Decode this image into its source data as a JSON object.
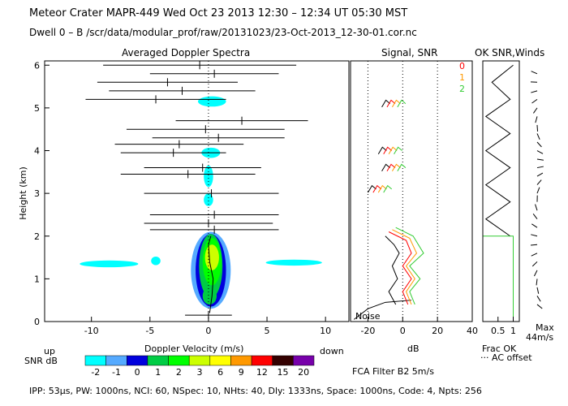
{
  "header": {
    "line1": "Meteor Crater   MAPR-449   Wed Oct 23 2013 12:30 – 12:34 UT 05:30 MST",
    "line2": "Dwell   0 –   B    /scr/data/modular_prof/raw/20131023/23-Oct-2013_12-30-01.cor.nc"
  },
  "panels": {
    "doppler_title": "Averaged Doppler Spectra",
    "signal_title": "Signal, SNR",
    "winds_title": "OK SNR,Winds"
  },
  "legend": {
    "ok_labels": [
      "0",
      "1",
      "2"
    ],
    "ok_colors": [
      "#ff0000",
      "#ff9900",
      "#33cc33"
    ],
    "up": "up",
    "down": "down",
    "snr_label": "SNR dB",
    "colorbar_ticks": [
      "-2",
      "-1",
      "0",
      "1",
      "2",
      "3",
      "6",
      "9",
      "12",
      "15",
      "20"
    ],
    "colorbar_colors": [
      "#00ffff",
      "#55aaff",
      "#0000dd",
      "#00cc44",
      "#00ff00",
      "#ccff00",
      "#ffff00",
      "#ff9900",
      "#ff0000",
      "#330000",
      "#7700aa"
    ],
    "noise_label": "Noise",
    "frac_ok": "Frac OK",
    "ac_offset": "··· AC offset",
    "max_label": "Max",
    "max_value": "44m/s",
    "fca_filter": "FCA Filter B2   5m/s"
  },
  "footer": {
    "params": "IPP: 53μs,  PW: 1000ns,  NCI: 60,  NSpec: 10,  NHts: 40,  Dly: 1333ns,  Space: 1000ns,  Code: 4,  Npts: 256"
  },
  "chart_data": [
    {
      "type": "heatmap",
      "title": "Averaged Doppler Spectra",
      "xlabel": "Doppler Velocity (m/s)",
      "ylabel": "Height (km)",
      "xlim": [
        -14,
        12
      ],
      "ylim": [
        0,
        6.1
      ],
      "xticks": [
        -10,
        -5,
        0,
        5,
        10
      ],
      "yticks": [
        0,
        1,
        2,
        3,
        4,
        5,
        6
      ],
      "spectral_segments": [
        {
          "height": 6.0,
          "vmin": -9.0,
          "vmax": 7.5
        },
        {
          "height": 5.8,
          "vmin": -5.0,
          "vmax": 6.0
        },
        {
          "height": 5.6,
          "vmin": -9.5,
          "vmax": 2.5
        },
        {
          "height": 5.4,
          "vmin": -8.5,
          "vmax": 4.0
        },
        {
          "height": 5.2,
          "vmin": -10.5,
          "vmax": 1.5
        },
        {
          "height": 4.7,
          "vmin": -2.8,
          "vmax": 8.5
        },
        {
          "height": 4.5,
          "vmin": -7.0,
          "vmax": 6.5
        },
        {
          "height": 4.3,
          "vmin": -4.8,
          "vmax": 6.5
        },
        {
          "height": 4.15,
          "vmin": -8.0,
          "vmax": 3.0
        },
        {
          "height": 3.95,
          "vmin": -7.5,
          "vmax": 1.5
        },
        {
          "height": 3.6,
          "vmin": -5.5,
          "vmax": 4.5
        },
        {
          "height": 3.45,
          "vmin": -7.5,
          "vmax": 4.0
        },
        {
          "height": 3.0,
          "vmin": -5.5,
          "vmax": 6.0
        },
        {
          "height": 2.5,
          "vmin": -5.0,
          "vmax": 6.0
        },
        {
          "height": 2.3,
          "vmin": -5.5,
          "vmax": 5.5
        },
        {
          "height": 2.15,
          "vmin": -5.0,
          "vmax": 6.0
        },
        {
          "height": 0.15,
          "vmin": -2.0,
          "vmax": 2.0
        }
      ],
      "mean_velocity_profile": [
        {
          "height": 0.2,
          "v": 0.1
        },
        {
          "height": 0.6,
          "v": 0.3
        },
        {
          "height": 1.0,
          "v": 0.4
        },
        {
          "height": 1.4,
          "v": 0.1
        },
        {
          "height": 1.8,
          "v": 0.0
        },
        {
          "height": 2.0,
          "v": 0.2
        }
      ]
    },
    {
      "type": "line",
      "title": "Signal, SNR",
      "xlabel": "dB",
      "xlim": [
        -30,
        40
      ],
      "ylim": [
        0,
        6.1
      ],
      "xticks": [
        -20,
        0,
        20,
        40
      ],
      "series": [
        {
          "name": "Noise",
          "points": [
            [
              -28,
              0.05
            ],
            [
              -20,
              0.3
            ],
            [
              -10,
              0.45
            ],
            [
              5,
              0.5
            ]
          ]
        },
        {
          "name": "Signal",
          "points": [
            [
              -10,
              2.0
            ],
            [
              -5,
              1.8
            ],
            [
              -2,
              1.6
            ],
            [
              -6,
              1.3
            ],
            [
              -3,
              1.0
            ],
            [
              -8,
              0.7
            ],
            [
              -4,
              0.4
            ]
          ]
        },
        {
          "name": "SNR 0",
          "points": [
            [
              -8,
              2.1
            ],
            [
              2,
              1.9
            ],
            [
              5,
              1.6
            ],
            [
              0,
              1.3
            ],
            [
              5,
              1.0
            ],
            [
              0,
              0.7
            ],
            [
              3,
              0.4
            ]
          ]
        },
        {
          "name": "SNR 1",
          "points": [
            [
              -6,
              2.15
            ],
            [
              4,
              1.95
            ],
            [
              8,
              1.6
            ],
            [
              2,
              1.3
            ],
            [
              7,
              1.0
            ],
            [
              2,
              0.7
            ],
            [
              5,
              0.4
            ]
          ]
        },
        {
          "name": "SNR 2",
          "points": [
            [
              -4,
              2.2
            ],
            [
              6,
              2.0
            ],
            [
              12,
              1.6
            ],
            [
              4,
              1.3
            ],
            [
              10,
              1.0
            ],
            [
              4,
              0.7
            ],
            [
              7,
              0.4
            ]
          ]
        }
      ]
    },
    {
      "type": "line",
      "title": "OK SNR,Winds",
      "xlim": [
        0,
        1.2
      ],
      "ylim": [
        0,
        6.1
      ],
      "xticks": [
        0.5,
        1
      ],
      "series": [
        {
          "name": "Frac OK",
          "points": [
            [
              1.0,
              6.0
            ],
            [
              0.3,
              5.6
            ],
            [
              0.9,
              5.2
            ],
            [
              0.1,
              4.8
            ],
            [
              0.9,
              4.4
            ],
            [
              0.1,
              4.0
            ],
            [
              0.9,
              3.6
            ],
            [
              0.1,
              3.2
            ],
            [
              0.9,
              2.8
            ],
            [
              0.1,
              2.4
            ],
            [
              0.9,
              2.0
            ]
          ]
        },
        {
          "name": "SNR 2",
          "points": [
            [
              0.0,
              2.0
            ],
            [
              1.0,
              2.0
            ],
            [
              1.0,
              0.1
            ]
          ]
        }
      ],
      "max_wind_ms": 44
    }
  ]
}
